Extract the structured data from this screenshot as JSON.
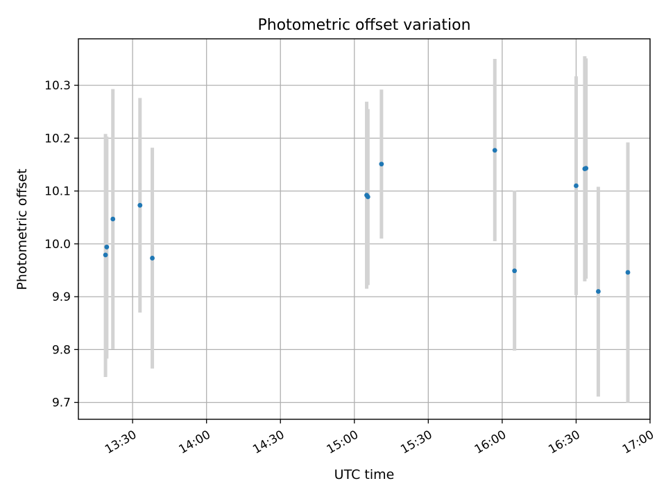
{
  "chart_data": {
    "type": "scatter",
    "title": "Photometric offset variation",
    "xlabel": "UTC time",
    "ylabel": "Photometric offset",
    "x_unit": "time",
    "xlim": [
      "13:08",
      "17:00"
    ],
    "ylim": [
      9.668,
      10.388
    ],
    "x_ticks": [
      "13:30",
      "14:00",
      "14:30",
      "15:00",
      "15:30",
      "16:00",
      "16:30",
      "17:00"
    ],
    "y_ticks": [
      "9.7",
      "9.8",
      "9.9",
      "10.0",
      "10.1",
      "10.2",
      "10.3"
    ],
    "grid": true,
    "colors": {
      "marker": "#1f77b4",
      "errorbar": "#d3d3d3",
      "grid": "#b0b0b0"
    },
    "series": [
      {
        "points": [
          {
            "x": "13:19",
            "y": 9.979,
            "ylow": 9.748,
            "yhigh": 10.208
          },
          {
            "x": "13:19.5",
            "y": 9.994,
            "ylow": 9.783,
            "yhigh": 10.203
          },
          {
            "x": "13:22",
            "y": 10.047,
            "ylow": 9.801,
            "yhigh": 10.293
          },
          {
            "x": "13:33",
            "y": 10.073,
            "ylow": 9.87,
            "yhigh": 10.276
          },
          {
            "x": "13:38",
            "y": 9.973,
            "ylow": 9.764,
            "yhigh": 10.182
          },
          {
            "x": "15:05",
            "y": 10.092,
            "ylow": 9.915,
            "yhigh": 10.269
          },
          {
            "x": "15:05.5",
            "y": 10.089,
            "ylow": 9.922,
            "yhigh": 10.255
          },
          {
            "x": "15:11",
            "y": 10.151,
            "ylow": 10.01,
            "yhigh": 10.292
          },
          {
            "x": "15:57",
            "y": 10.177,
            "ylow": 10.005,
            "yhigh": 10.35
          },
          {
            "x": "16:05",
            "y": 9.949,
            "ylow": 9.798,
            "yhigh": 10.101
          },
          {
            "x": "16:30",
            "y": 10.11,
            "ylow": 9.903,
            "yhigh": 10.317
          },
          {
            "x": "16:33.5",
            "y": 10.142,
            "ylow": 9.929,
            "yhigh": 10.355
          },
          {
            "x": "16:34",
            "y": 10.143,
            "ylow": 9.934,
            "yhigh": 10.351
          },
          {
            "x": "16:39",
            "y": 9.91,
            "ylow": 9.711,
            "yhigh": 10.108
          },
          {
            "x": "16:51",
            "y": 9.946,
            "ylow": 9.7,
            "yhigh": 10.192
          }
        ]
      }
    ]
  }
}
